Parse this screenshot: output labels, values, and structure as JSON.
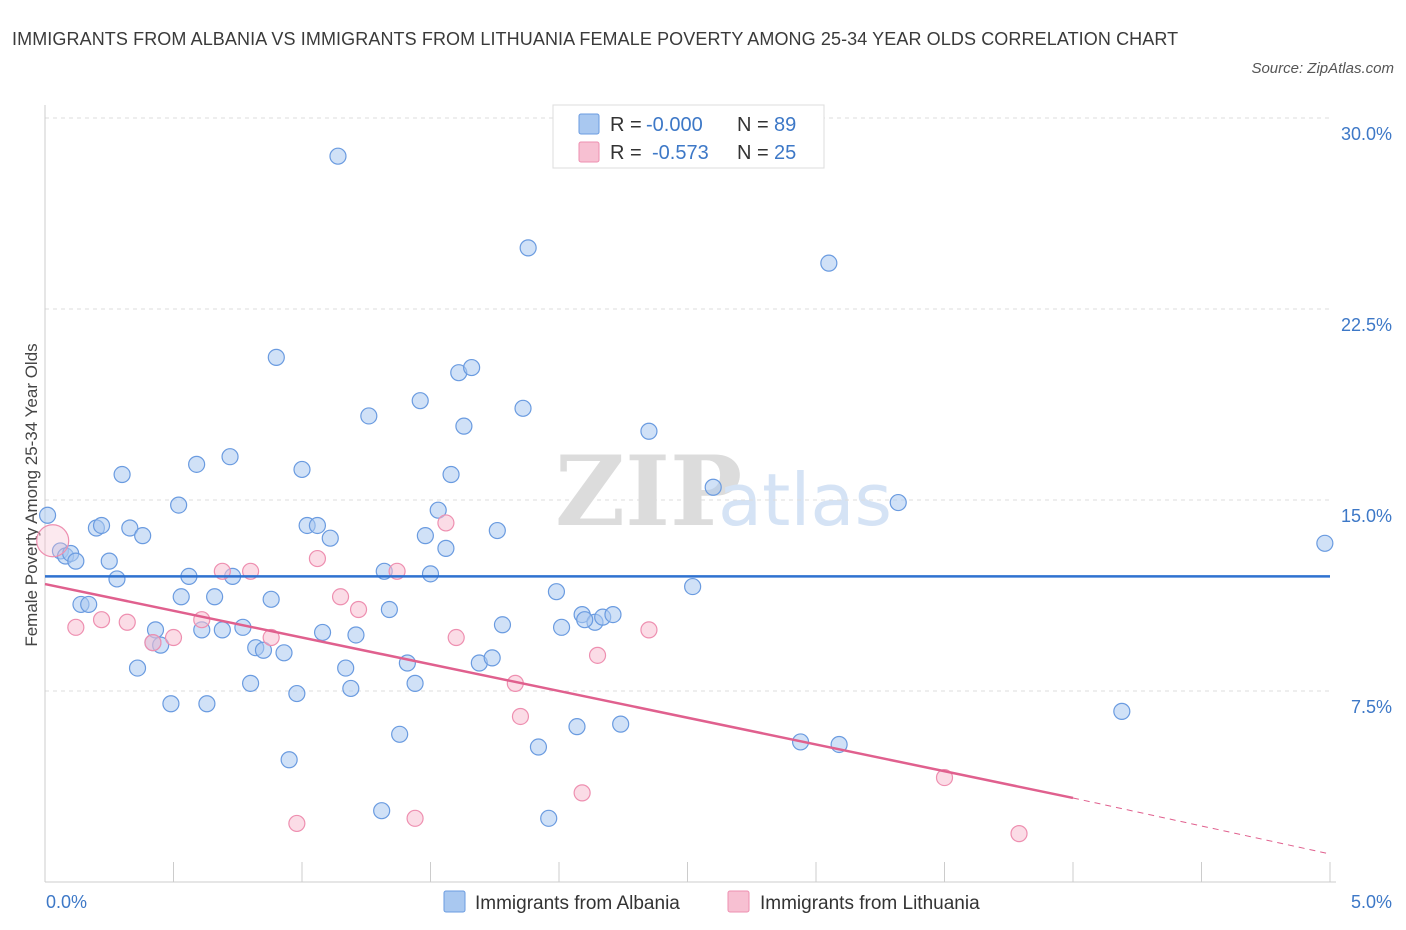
{
  "title": "IMMIGRANTS FROM ALBANIA VS IMMIGRANTS FROM LITHUANIA FEMALE POVERTY AMONG 25-34 YEAR OLDS CORRELATION CHART",
  "source": "Source: ZipAtlas.com",
  "watermark": {
    "zip": "ZIP",
    "atlas": "atlas"
  },
  "colors": {
    "albania_fill": "#a9c8f0",
    "albania_stroke": "#6a9be0",
    "albania_line": "#2f72d0",
    "lithuania_fill": "#f7c0d2",
    "lithuania_stroke": "#ee8fb0",
    "lithuania_line": "#e0608e",
    "tick_label": "#3d78c7",
    "grid": "#dddddd"
  },
  "legend": {
    "r_label": "R =",
    "n_label": "N =",
    "albania": {
      "r": "-0.000",
      "n": "89"
    },
    "lithuania": {
      "r": "-0.573",
      "n": "25"
    }
  },
  "chart_data": {
    "type": "scatter",
    "title": "IMMIGRANTS FROM ALBANIA VS IMMIGRANTS FROM LITHUANIA FEMALE POVERTY AMONG 25-34 YEAR OLDS CORRELATION CHART",
    "xlabel": "",
    "ylabel": "Female Poverty Among 25-34 Year Olds",
    "xlim": [
      0,
      5
    ],
    "ylim": [
      0,
      30
    ],
    "x_tick_labels": [
      "0.0%",
      "5.0%"
    ],
    "y_ticks": [
      7.5,
      15,
      22.5,
      30
    ],
    "y_tick_labels": [
      "7.5%",
      "15.0%",
      "22.5%",
      "30.0%"
    ],
    "series": [
      {
        "name": "Immigrants from Albania",
        "trend": {
          "x": [
            0,
            5
          ],
          "y": [
            12.0,
            12.0
          ]
        },
        "points": [
          [
            0.01,
            14.4
          ],
          [
            0.06,
            13.0
          ],
          [
            0.08,
            12.8
          ],
          [
            0.1,
            12.9
          ],
          [
            0.12,
            12.6
          ],
          [
            0.14,
            10.9
          ],
          [
            0.17,
            10.9
          ],
          [
            0.2,
            13.9
          ],
          [
            0.22,
            14.0
          ],
          [
            0.25,
            12.6
          ],
          [
            0.28,
            11.9
          ],
          [
            0.3,
            16.0
          ],
          [
            0.33,
            13.9
          ],
          [
            0.36,
            8.4
          ],
          [
            0.38,
            13.6
          ],
          [
            0.42,
            9.4
          ],
          [
            0.43,
            9.9
          ],
          [
            0.45,
            9.3
          ],
          [
            0.49,
            7.0
          ],
          [
            0.52,
            14.8
          ],
          [
            0.53,
            11.2
          ],
          [
            0.56,
            12.0
          ],
          [
            0.59,
            16.4
          ],
          [
            0.61,
            9.9
          ],
          [
            0.63,
            7.0
          ],
          [
            0.66,
            11.2
          ],
          [
            0.69,
            9.9
          ],
          [
            0.72,
            16.7
          ],
          [
            0.73,
            12.0
          ],
          [
            0.77,
            10.0
          ],
          [
            0.8,
            7.8
          ],
          [
            0.82,
            9.2
          ],
          [
            0.85,
            9.1
          ],
          [
            0.88,
            11.1
          ],
          [
            0.9,
            20.6
          ],
          [
            0.93,
            9.0
          ],
          [
            0.95,
            4.8
          ],
          [
            0.98,
            7.4
          ],
          [
            1.0,
            16.2
          ],
          [
            1.02,
            14.0
          ],
          [
            1.06,
            14.0
          ],
          [
            1.08,
            9.8
          ],
          [
            1.11,
            13.5
          ],
          [
            1.14,
            28.5
          ],
          [
            1.17,
            8.4
          ],
          [
            1.19,
            7.6
          ],
          [
            1.21,
            9.7
          ],
          [
            1.26,
            18.3
          ],
          [
            1.31,
            2.8
          ],
          [
            1.32,
            12.2
          ],
          [
            1.34,
            10.7
          ],
          [
            1.38,
            5.8
          ],
          [
            1.41,
            8.6
          ],
          [
            1.44,
            7.8
          ],
          [
            1.46,
            18.9
          ],
          [
            1.48,
            13.6
          ],
          [
            1.5,
            12.1
          ],
          [
            1.53,
            14.6
          ],
          [
            1.56,
            13.1
          ],
          [
            1.58,
            16.0
          ],
          [
            1.61,
            20.0
          ],
          [
            1.63,
            17.9
          ],
          [
            1.66,
            20.2
          ],
          [
            1.69,
            8.6
          ],
          [
            1.74,
            8.8
          ],
          [
            1.76,
            13.8
          ],
          [
            1.78,
            10.1
          ],
          [
            1.86,
            18.6
          ],
          [
            1.88,
            24.9
          ],
          [
            1.92,
            5.3
          ],
          [
            1.96,
            2.5
          ],
          [
            1.99,
            11.4
          ],
          [
            2.01,
            10.0
          ],
          [
            2.07,
            6.1
          ],
          [
            2.09,
            10.5
          ],
          [
            2.14,
            10.2
          ],
          [
            2.17,
            10.4
          ],
          [
            2.21,
            10.5
          ],
          [
            2.24,
            6.2
          ],
          [
            2.35,
            17.7
          ],
          [
            2.52,
            11.6
          ],
          [
            2.6,
            15.5
          ],
          [
            2.94,
            5.5
          ],
          [
            3.05,
            24.3
          ],
          [
            3.09,
            5.4
          ],
          [
            3.32,
            14.9
          ],
          [
            4.19,
            6.7
          ],
          [
            4.98,
            13.3
          ],
          [
            2.1,
            10.3
          ]
        ]
      },
      {
        "name": "Immigrants from Lithuania",
        "trend": {
          "x": [
            0,
            4.0
          ],
          "y": [
            11.7,
            3.3
          ],
          "dashed_extension": {
            "x": [
              4.0,
              5.0
            ],
            "y": [
              3.3,
              1.1
            ]
          }
        },
        "points": [
          [
            0.03,
            13.4
          ],
          [
            0.12,
            10.0
          ],
          [
            0.22,
            10.3
          ],
          [
            0.32,
            10.2
          ],
          [
            0.42,
            9.4
          ],
          [
            0.5,
            9.6
          ],
          [
            0.61,
            10.3
          ],
          [
            0.69,
            12.2
          ],
          [
            0.8,
            12.2
          ],
          [
            0.88,
            9.6
          ],
          [
            0.98,
            2.3
          ],
          [
            1.06,
            12.7
          ],
          [
            1.15,
            11.2
          ],
          [
            1.22,
            10.7
          ],
          [
            1.37,
            12.2
          ],
          [
            1.44,
            2.5
          ],
          [
            1.56,
            14.1
          ],
          [
            1.6,
            9.6
          ],
          [
            1.83,
            7.8
          ],
          [
            1.85,
            6.5
          ],
          [
            2.09,
            3.5
          ],
          [
            2.15,
            8.9
          ],
          [
            2.35,
            9.9
          ],
          [
            3.5,
            4.1
          ],
          [
            3.79,
            1.9
          ]
        ]
      }
    ],
    "legend_position": "top-center"
  },
  "bottom_legend": [
    "Immigrants from Albania",
    "Immigrants from Lithuania"
  ]
}
